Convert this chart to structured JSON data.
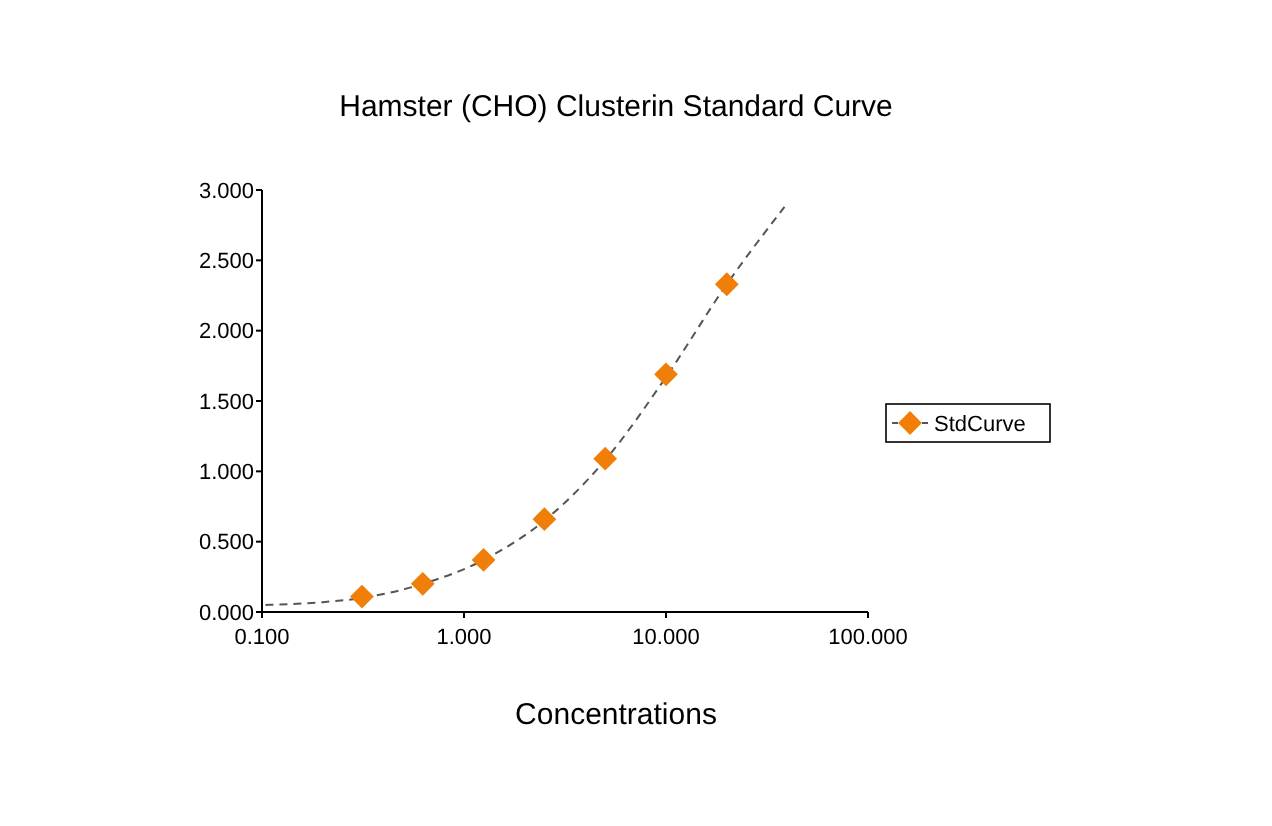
{
  "chart_data": {
    "type": "scatter",
    "title": "Hamster (CHO) Clusterin Standard Curve",
    "xlabel": "Concentrations",
    "log": "x",
    "xlim": [
      0.1,
      100
    ],
    "xticks": [
      {
        "value": 0.1,
        "label": "0.100"
      },
      {
        "value": 1,
        "label": "1.000"
      },
      {
        "value": 10,
        "label": "10.000"
      },
      {
        "value": 100,
        "label": "100.000"
      }
    ],
    "ylim": [
      0,
      3
    ],
    "yticks": [
      {
        "value": 0,
        "label": "0.000"
      },
      {
        "value": 0.5,
        "label": "0.500"
      },
      {
        "value": 1,
        "label": "1.000"
      },
      {
        "value": 1.5,
        "label": "1.500"
      },
      {
        "value": 2,
        "label": "2.000"
      },
      {
        "value": 2.5,
        "label": "2.500"
      },
      {
        "value": 3,
        "label": "3.000"
      }
    ],
    "grid": false,
    "legend": "right",
    "series": [
      {
        "type": "line",
        "color": "#555555",
        "line_style": "dashed",
        "marker": "none",
        "x": [
          0.104,
          0.2,
          0.3125,
          0.625,
          1.25,
          2.5,
          5,
          10,
          20,
          38.6
        ],
        "values": [
          0.05,
          0.07,
          0.1,
          0.2,
          0.37,
          0.65,
          1.08,
          1.67,
          2.33,
          2.88
        ]
      },
      {
        "name": "StdCurve",
        "color": "#f07f09",
        "marker": "diamond",
        "x": [
          0.3125,
          0.625,
          1.25,
          2.5,
          5,
          10,
          20
        ],
        "values": [
          0.11,
          0.2,
          0.37,
          0.66,
          1.09,
          1.69,
          2.33
        ]
      }
    ]
  }
}
